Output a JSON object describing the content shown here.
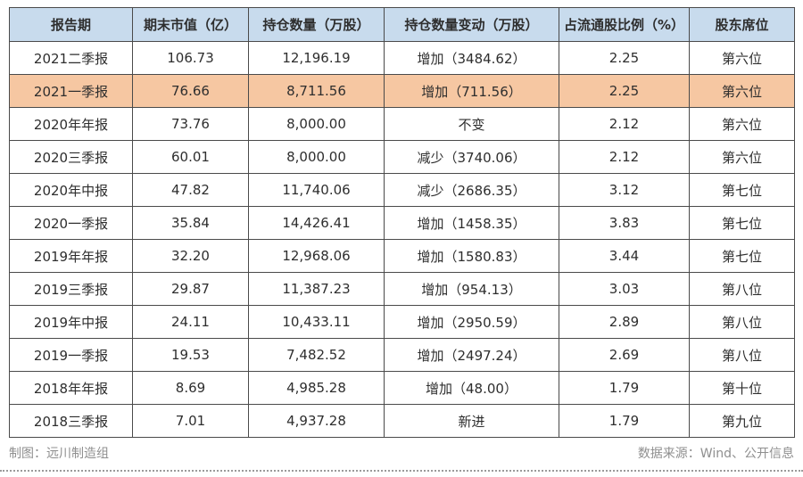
{
  "colors": {
    "header_bg": "#c8dbed",
    "highlight_bg": "#f6c7a2",
    "border": "#4a4a4a",
    "text": "#2e2e2e",
    "footer_text": "#8f8f8f"
  },
  "footer": {
    "left": "制图：远川制造组",
    "right": "数据来源：Wind、公开信息"
  },
  "chart_data": {
    "type": "table",
    "columns": [
      "报告期",
      "期末市值（亿）",
      "持仓数量（万股）",
      "持仓数量变动（万股）",
      "占流通股比例（%）",
      "股东席位"
    ],
    "rows": [
      [
        "2021二季报",
        "106.73",
        "12,196.19",
        "增加（3484.62）",
        "2.25",
        "第六位"
      ],
      [
        "2021一季报",
        "76.66",
        "8,711.56",
        "增加（711.56）",
        "2.25",
        "第六位"
      ],
      [
        "2020年年报",
        "73.76",
        "8,000.00",
        "不变",
        "2.12",
        "第六位"
      ],
      [
        "2020三季报",
        "60.01",
        "8,000.00",
        "减少（3740.06）",
        "2.12",
        "第六位"
      ],
      [
        "2020年中报",
        "47.82",
        "11,740.06",
        "减少（2686.35）",
        "3.12",
        "第七位"
      ],
      [
        "2020一季报",
        "35.84",
        "14,426.41",
        "增加（1458.35）",
        "3.83",
        "第七位"
      ],
      [
        "2019年年报",
        "32.20",
        "12,968.06",
        "增加（1580.83）",
        "3.44",
        "第七位"
      ],
      [
        "2019三季报",
        "29.87",
        "11,387.23",
        "增加（954.13）",
        "3.03",
        "第八位"
      ],
      [
        "2019年中报",
        "24.11",
        "10,433.11",
        "增加（2950.59）",
        "2.89",
        "第八位"
      ],
      [
        "2019一季报",
        "19.53",
        "7,482.52",
        "增加（2497.24）",
        "2.69",
        "第八位"
      ],
      [
        "2018年年报",
        "8.69",
        "4,985.28",
        "增加（48.00）",
        "1.79",
        "第十位"
      ],
      [
        "2018三季报",
        "7.01",
        "4,937.28",
        "新进",
        "1.79",
        "第九位"
      ]
    ],
    "highlighted_row_index": 1,
    "legend_position": "none",
    "grid": true
  }
}
